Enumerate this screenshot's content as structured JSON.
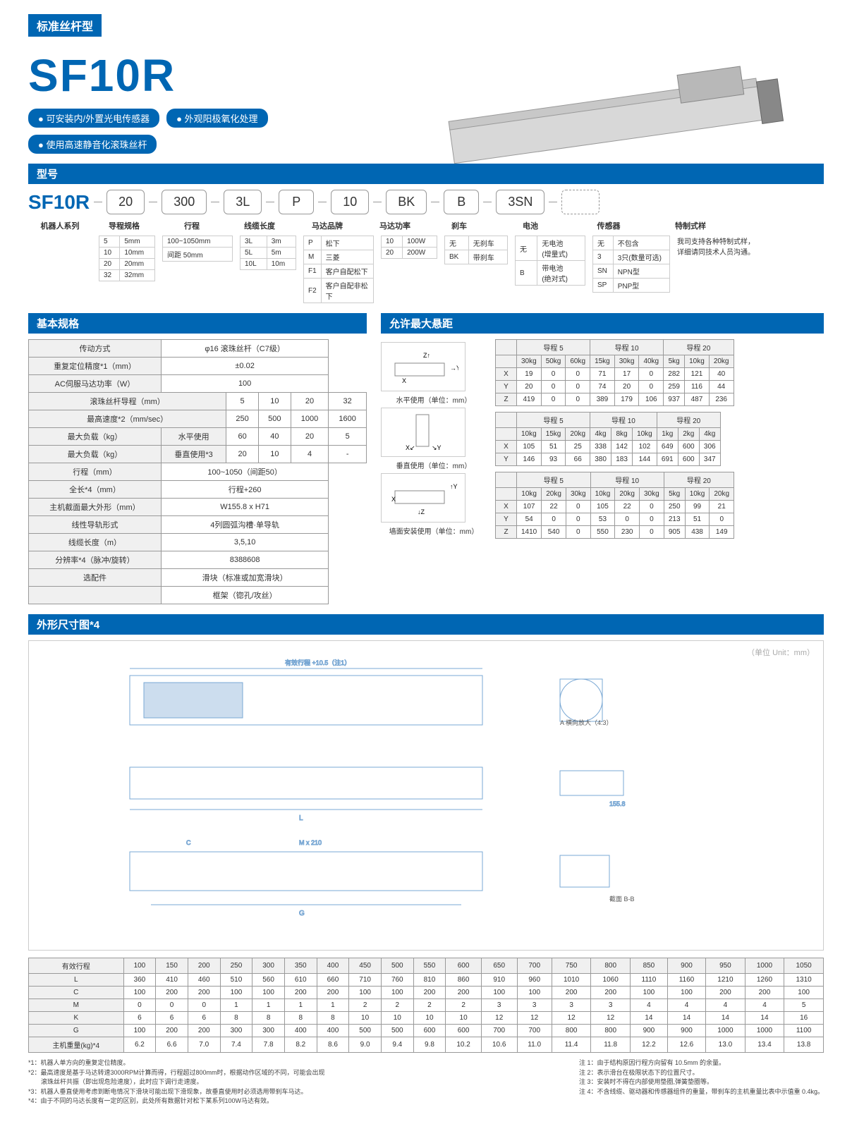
{
  "header": {
    "category": "标准丝杆型",
    "model": "SF10R"
  },
  "pills": [
    "● 可安装内/外置光电传感器",
    "● 外观阳极氧化处理",
    "● 使用高速静音化滚珠丝杆"
  ],
  "section_model": "型号",
  "model_parts": {
    "base": "SF10R",
    "p1": "20",
    "p2": "300",
    "p3": "3L",
    "p4": "P",
    "p5": "10",
    "p6": "BK",
    "p7": "B",
    "p8": "3SN"
  },
  "model_labels": {
    "series": "机器人系列",
    "lead": "导程规格",
    "stroke": "行程",
    "cable": "线缆长度",
    "motor": "马达品牌",
    "power": "马达功率",
    "brake": "刹车",
    "battery": "电池",
    "sensor": "传感器",
    "custom": "特制式样"
  },
  "opts": {
    "lead": [
      [
        "5",
        "5mm"
      ],
      [
        "10",
        "10mm"
      ],
      [
        "20",
        "20mm"
      ],
      [
        "32",
        "32mm"
      ]
    ],
    "stroke": [
      [
        "100~1050mm"
      ],
      [
        "间距 50mm"
      ]
    ],
    "cable": [
      [
        "3L",
        "3m"
      ],
      [
        "5L",
        "5m"
      ],
      [
        "10L",
        "10m"
      ]
    ],
    "motor": [
      [
        "P",
        "松下"
      ],
      [
        "M",
        "三菱"
      ],
      [
        "F1",
        "客户自配松下"
      ],
      [
        "F2",
        "客户自配非松下"
      ]
    ],
    "power": [
      [
        "10",
        "100W"
      ],
      [
        "20",
        "200W"
      ]
    ],
    "brake": [
      [
        "无",
        "无刹车"
      ],
      [
        "BK",
        "带刹车"
      ]
    ],
    "battery": [
      [
        "无",
        "无电池\n(增量式)"
      ],
      [
        "B",
        "带电池\n(绝对式)"
      ]
    ],
    "sensor": [
      [
        "无",
        "不包含"
      ],
      [
        "3",
        "3只(数量可选)"
      ],
      [
        "SN",
        "NPN型"
      ],
      [
        "SP",
        "PNP型"
      ]
    ],
    "custom": "我司支持各种特制式样，详细请同技术人员沟通。"
  },
  "section_spec": "基本规格",
  "spec": {
    "rows": [
      [
        "传动方式",
        "φ16 滚珠丝杆（C7级）",
        "",
        "",
        ""
      ],
      [
        "重复定位精度*1（mm）",
        "±0.02",
        "",
        "",
        ""
      ],
      [
        "AC伺服马达功率（W）",
        "100",
        "",
        "",
        ""
      ],
      [
        "滚珠丝杆导程（mm）",
        "5",
        "10",
        "20",
        "32"
      ],
      [
        "最高速度*2（mm/sec）",
        "250",
        "500",
        "1000",
        "1600"
      ],
      [
        "最大负载（kg）|水平使用",
        "60",
        "40",
        "20",
        "5"
      ],
      [
        "最大负载（kg）|垂直使用*3",
        "20",
        "10",
        "4",
        "-"
      ],
      [
        "行程（mm）",
        "100~1050（间距50）",
        "",
        "",
        ""
      ],
      [
        "全长*4（mm）",
        "行程+260",
        "",
        "",
        ""
      ],
      [
        "主机截面最大外形（mm）",
        "W155.8 x H71",
        "",
        "",
        ""
      ],
      [
        "线性导轨形式",
        "4列圆弧沟槽·单导轨",
        "",
        "",
        ""
      ],
      [
        "线缆长度（m）",
        "3,5,10",
        "",
        "",
        ""
      ],
      [
        "分辨率*4（脉冲/旋转）",
        "8388608",
        "",
        "",
        ""
      ],
      [
        "选配件",
        "滑块（标准或加宽滑块）",
        "",
        "",
        ""
      ],
      [
        "",
        "框架（锪孔/攻丝）",
        "",
        "",
        ""
      ]
    ]
  },
  "section_overhang": "允许最大悬距",
  "diag_labels": {
    "h": "水平使用（单位：mm）",
    "v": "垂直使用（单位：mm）",
    "w": "墙面安装使用（单位：mm）"
  },
  "overhang": {
    "groups": [
      "导程 5",
      "导程 10",
      "导程 20"
    ],
    "h": {
      "hdr": [
        "30kg",
        "50kg",
        "60kg",
        "15kg",
        "30kg",
        "40kg",
        "5kg",
        "10kg",
        "20kg"
      ],
      "X": [
        "19",
        "0",
        "0",
        "71",
        "17",
        "0",
        "282",
        "121",
        "40"
      ],
      "Y": [
        "20",
        "0",
        "0",
        "74",
        "20",
        "0",
        "259",
        "116",
        "44"
      ],
      "Z": [
        "419",
        "0",
        "0",
        "389",
        "179",
        "106",
        "937",
        "487",
        "236"
      ]
    },
    "v": {
      "hdr": [
        "10kg",
        "15kg",
        "20kg",
        "4kg",
        "8kg",
        "10kg",
        "1kg",
        "2kg",
        "4kg"
      ],
      "X": [
        "105",
        "51",
        "25",
        "338",
        "142",
        "102",
        "649",
        "600",
        "306"
      ],
      "Y": [
        "146",
        "93",
        "66",
        "380",
        "183",
        "144",
        "691",
        "600",
        "347"
      ]
    },
    "w": {
      "hdr": [
        "10kg",
        "20kg",
        "30kg",
        "10kg",
        "20kg",
        "30kg",
        "5kg",
        "10kg",
        "20kg"
      ],
      "X": [
        "107",
        "22",
        "0",
        "105",
        "22",
        "0",
        "250",
        "99",
        "21"
      ],
      "Y": [
        "54",
        "0",
        "0",
        "53",
        "0",
        "0",
        "213",
        "51",
        "0"
      ],
      "Z": [
        "1410",
        "540",
        "0",
        "550",
        "230",
        "0",
        "905",
        "438",
        "149"
      ]
    }
  },
  "section_dim": "外形尺寸图*4",
  "dim_unit": "（单位 Unit：mm）",
  "dim_tbl": {
    "hdr": [
      "有效行程",
      "100",
      "150",
      "200",
      "250",
      "300",
      "350",
      "400",
      "450",
      "500",
      "550",
      "600",
      "650",
      "700",
      "750",
      "800",
      "850",
      "900",
      "950",
      "1000",
      "1050"
    ],
    "L": [
      "360",
      "410",
      "460",
      "510",
      "560",
      "610",
      "660",
      "710",
      "760",
      "810",
      "860",
      "910",
      "960",
      "1010",
      "1060",
      "1110",
      "1160",
      "1210",
      "1260",
      "1310"
    ],
    "C": [
      "100",
      "200",
      "200",
      "100",
      "100",
      "200",
      "200",
      "100",
      "100",
      "200",
      "200",
      "100",
      "100",
      "200",
      "200",
      "100",
      "100",
      "200",
      "200",
      "100"
    ],
    "M": [
      "0",
      "0",
      "0",
      "1",
      "1",
      "1",
      "1",
      "2",
      "2",
      "2",
      "2",
      "3",
      "3",
      "3",
      "3",
      "4",
      "4",
      "4",
      "4",
      "5"
    ],
    "K": [
      "6",
      "6",
      "6",
      "8",
      "8",
      "8",
      "8",
      "10",
      "10",
      "10",
      "10",
      "12",
      "12",
      "12",
      "12",
      "14",
      "14",
      "14",
      "14",
      "16"
    ],
    "G": [
      "100",
      "200",
      "200",
      "300",
      "300",
      "400",
      "400",
      "500",
      "500",
      "600",
      "600",
      "700",
      "700",
      "800",
      "800",
      "900",
      "900",
      "1000",
      "1000",
      "1100"
    ],
    "W": [
      "6.2",
      "6.6",
      "7.0",
      "7.4",
      "7.8",
      "8.2",
      "8.6",
      "9.0",
      "9.4",
      "9.8",
      "10.2",
      "10.6",
      "11.0",
      "11.4",
      "11.8",
      "12.2",
      "12.6",
      "13.0",
      "13.4",
      "13.8"
    ],
    "W_label": "主机重量(kg)*4"
  },
  "notes_left": [
    "*1：机器人单方向的重复定位精度。",
    "*2：最高速度是基于马达转速3000RPM计算而得，行程超过800mm时，根据动作区域的不同，可能会出现",
    "　　滚珠丝杆共振（即出现危险速度），此时应下调行走速度。",
    "*3：机器人垂直使用考虑到断电情况下滑块可能出现下滑现象，故垂直使用时必须选用带刹车马达。",
    "*4：由于不同的马达长度有一定的区别，此处所有数据针对松下某系列100W马达有效。"
  ],
  "notes_right": [
    "注 1：由于结构原因行程方向留有 10.5mm 的余量。",
    "注 2：表示滑台在极限状态下的位置尺寸。",
    "注 3：安装时不得在内部使用垫圈,弹簧垫圈等。",
    "注 4：不含线缆、驱动器和传感器组件的重量，带刹车的主机重量比表中示值重 0.4kg。"
  ]
}
